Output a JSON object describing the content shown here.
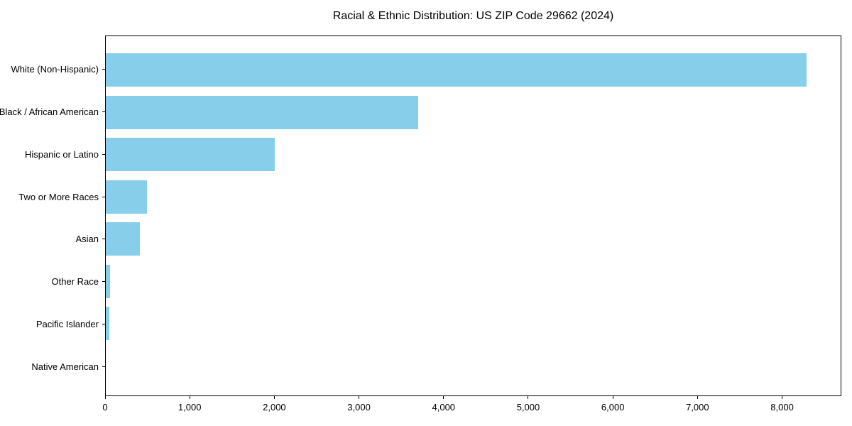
{
  "chart_data": {
    "type": "bar",
    "orientation": "horizontal",
    "title": "Racial & Ethnic Distribution: US ZIP Code 29662 (2024)",
    "categories": [
      "White (Non-Hispanic)",
      "Black / African American",
      "Hispanic or Latino",
      "Two or More Races",
      "Asian",
      "Other Race",
      "Pacific Islander",
      "Native American"
    ],
    "values": [
      8300,
      3700,
      2000,
      490,
      400,
      50,
      40,
      0
    ],
    "xlabel": "",
    "ylabel": "",
    "xlim": [
      0,
      8700
    ],
    "x_ticks": [
      {
        "label": "0",
        "value": 0
      },
      {
        "label": "1,000",
        "value": 1000
      },
      {
        "label": "2,000",
        "value": 2000
      },
      {
        "label": "3,000",
        "value": 3000
      },
      {
        "label": "4,000",
        "value": 4000
      },
      {
        "label": "5,000",
        "value": 5000
      },
      {
        "label": "6,000",
        "value": 6000
      },
      {
        "label": "7,000",
        "value": 7000
      },
      {
        "label": "8,000",
        "value": 8000
      }
    ],
    "grid": false,
    "legend_position": "none",
    "bar_color": "#87CEEB",
    "axis_color": "#000000",
    "text_color": "#000000"
  }
}
